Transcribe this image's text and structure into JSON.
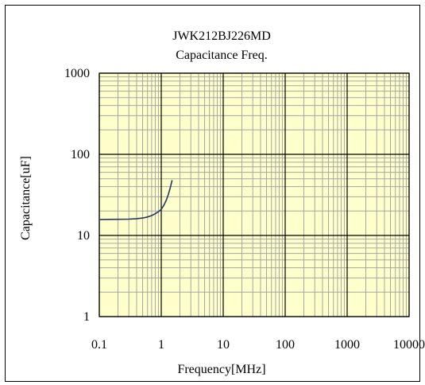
{
  "chart_data": {
    "type": "line",
    "title": "JWK212BJ226MD",
    "subtitle": "Capacitance Freq.",
    "xlabel": "Frequency[MHz]",
    "ylabel": "Capacitance[uF]",
    "x_scale": "log",
    "y_scale": "log",
    "xlim": [
      0.1,
      10000
    ],
    "ylim": [
      1,
      1000
    ],
    "x_ticks": [
      "0.1",
      "1",
      "10",
      "100",
      "1000",
      "10000"
    ],
    "y_ticks": [
      "1",
      "10",
      "100",
      "1000"
    ],
    "grid": true,
    "colors": {
      "plot_background": "#ffffcc",
      "minor_grid": "#a6a6a6",
      "major_grid": "#000000",
      "series": "#1f3864"
    },
    "series": [
      {
        "x": [
          0.1,
          0.2,
          0.3,
          0.4,
          0.5,
          0.6,
          0.7,
          0.8,
          0.9,
          1.0,
          1.1,
          1.2,
          1.3,
          1.4,
          1.5
        ],
        "y": [
          15.7,
          15.8,
          15.9,
          16.1,
          16.4,
          16.9,
          17.6,
          18.5,
          19.6,
          21.0,
          23.5,
          27.0,
          32.0,
          39.0,
          48.0
        ]
      }
    ]
  }
}
